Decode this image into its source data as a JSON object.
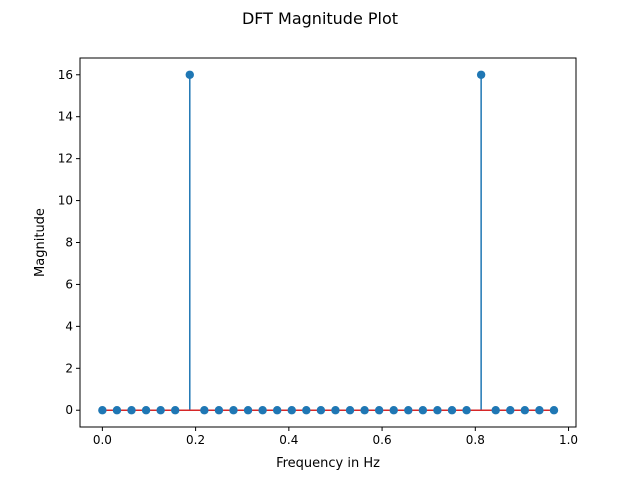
{
  "chart_data": {
    "type": "stem",
    "title": "DFT Magnitude Plot",
    "xlabel": "Frequency in Hz",
    "ylabel": "Magnitude",
    "xlim": [
      -0.048,
      1.016
    ],
    "ylim": [
      -0.8,
      16.8
    ],
    "xticks": [
      0.0,
      0.2,
      0.4,
      0.6,
      0.8,
      1.0
    ],
    "xtick_labels": [
      "0.0",
      "0.2",
      "0.4",
      "0.6",
      "0.8",
      "1.0"
    ],
    "yticks": [
      0,
      2,
      4,
      6,
      8,
      10,
      12,
      14,
      16
    ],
    "ytick_labels": [
      "0",
      "2",
      "4",
      "6",
      "8",
      "10",
      "12",
      "14",
      "16"
    ],
    "grid": false,
    "series": [
      {
        "x": [
          0.0,
          0.03125,
          0.0625,
          0.09375,
          0.125,
          0.15625,
          0.1875,
          0.21875,
          0.25,
          0.28125,
          0.3125,
          0.34375,
          0.375,
          0.40625,
          0.4375,
          0.46875,
          0.5,
          0.53125,
          0.5625,
          0.59375,
          0.625,
          0.65625,
          0.6875,
          0.71875,
          0.75,
          0.78125,
          0.8125,
          0.84375,
          0.875,
          0.90625,
          0.9375,
          0.96875
        ],
        "values": [
          0,
          0,
          0,
          0,
          0,
          0,
          16,
          0,
          0,
          0,
          0,
          0,
          0,
          0,
          0,
          0,
          0,
          0,
          0,
          0,
          0,
          0,
          0,
          0,
          0,
          0,
          16,
          0,
          0,
          0,
          0,
          0
        ]
      }
    ],
    "colors": {
      "stem": "#1f77b4",
      "marker": "#1f77b4",
      "baseline": "#d62728"
    }
  }
}
